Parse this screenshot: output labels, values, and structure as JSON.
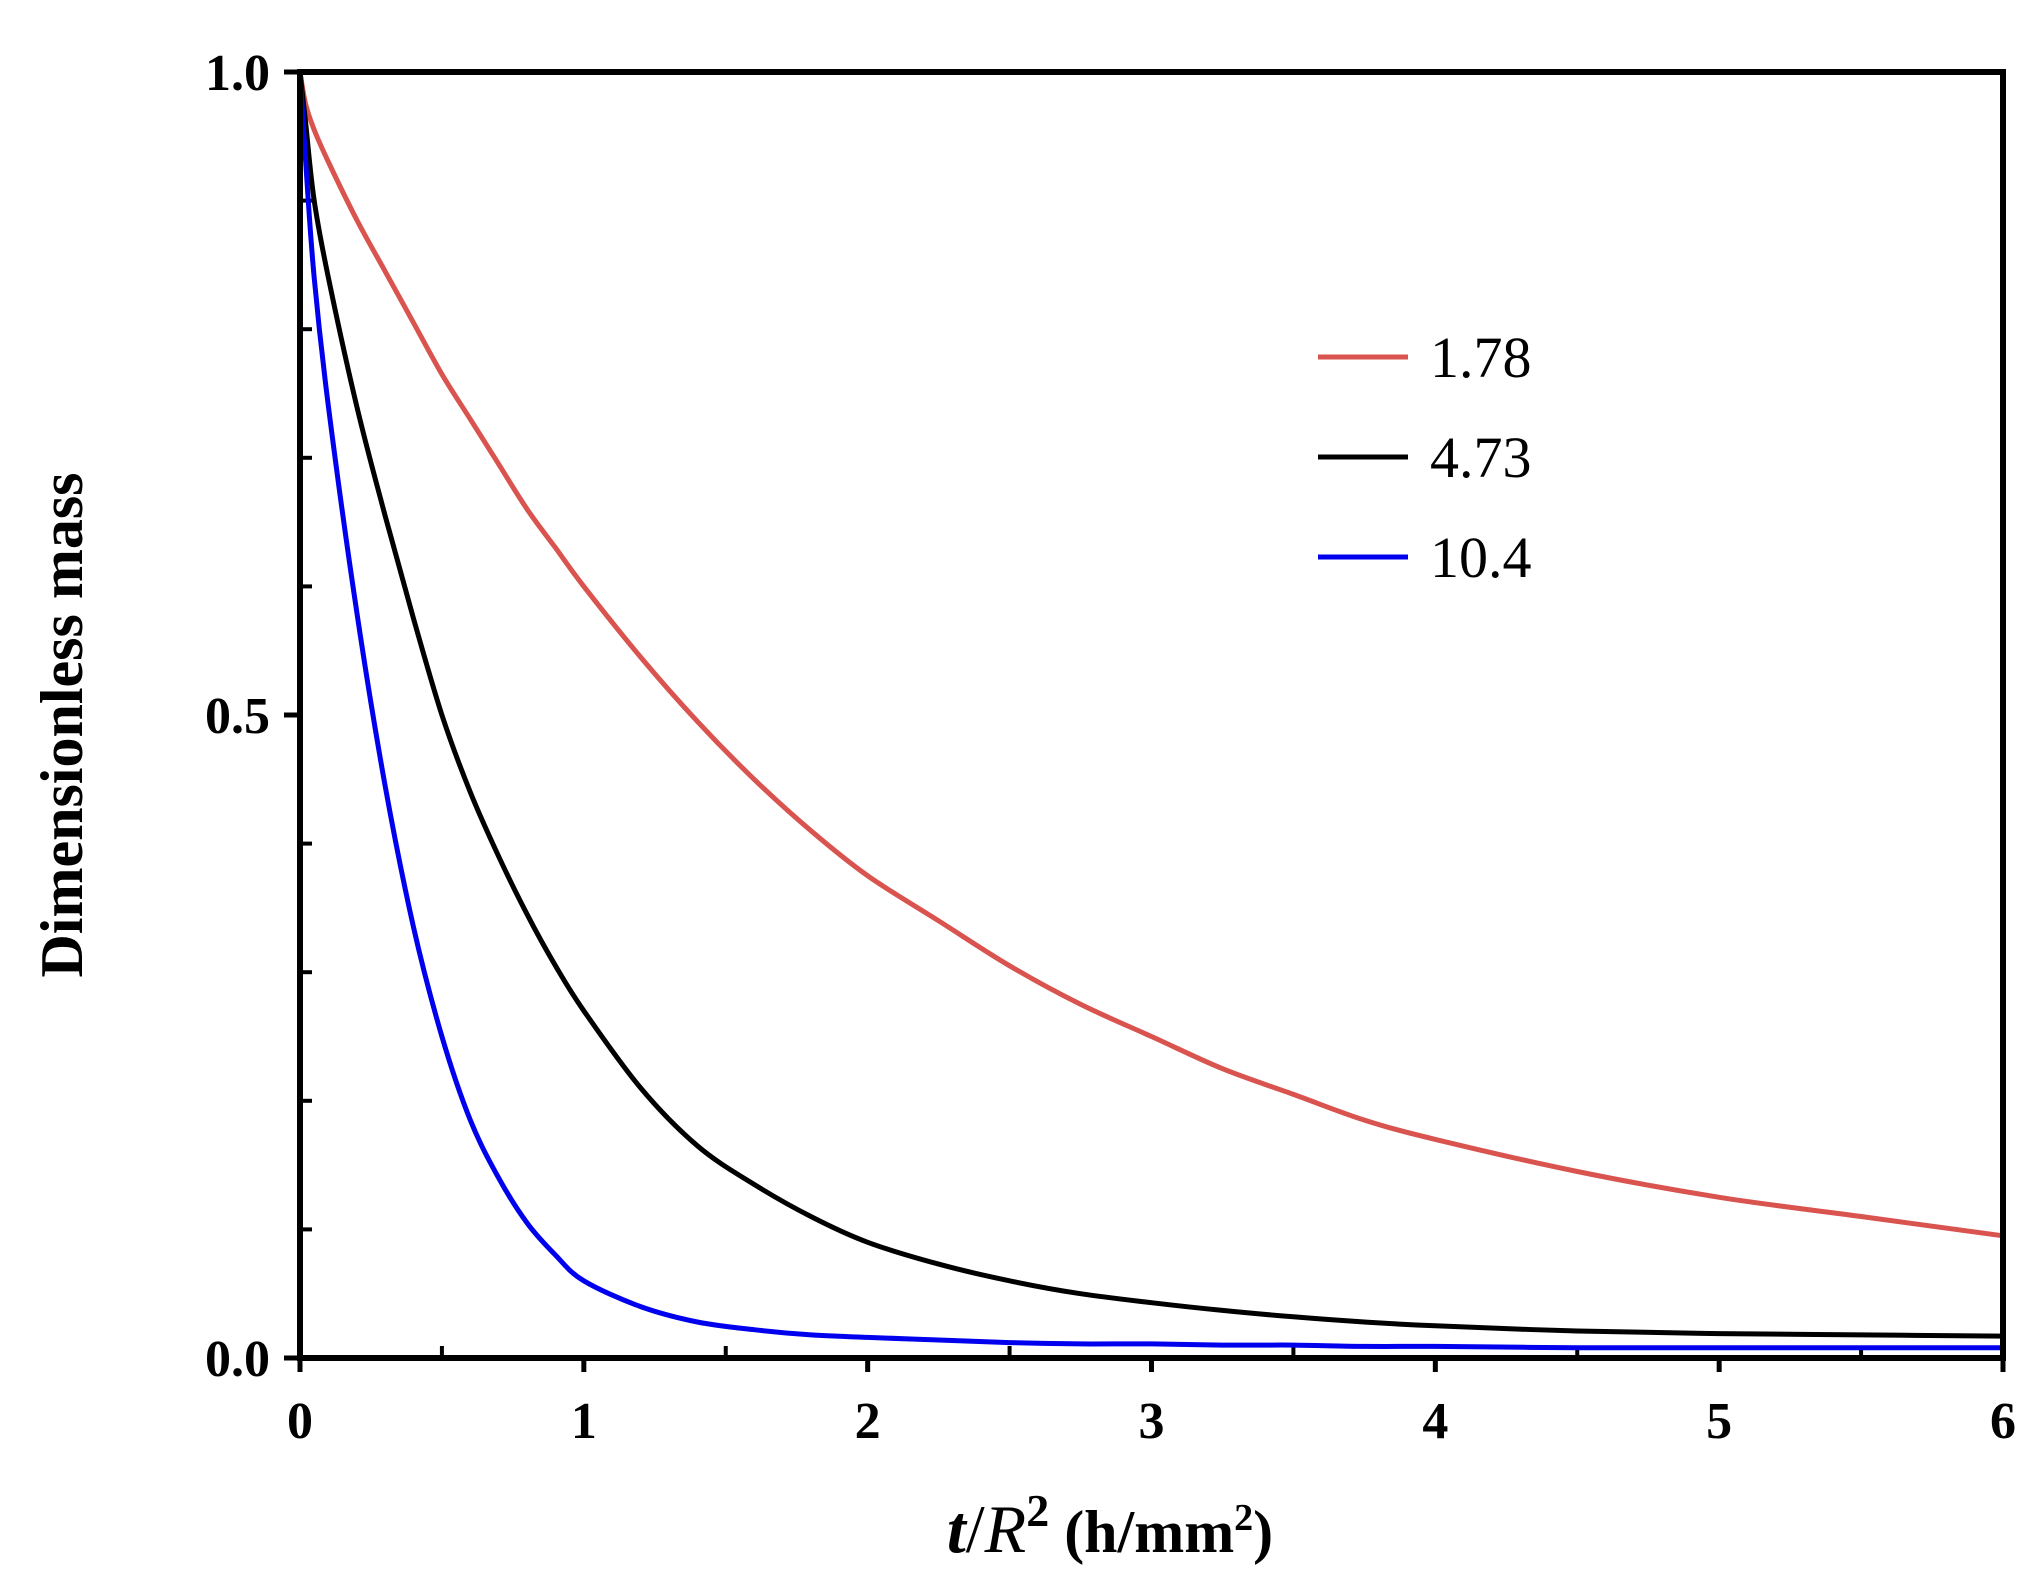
{
  "chart_data": {
    "type": "line",
    "title": "",
    "xlabel": {
      "var_t": "t",
      "slash": "/",
      "var_R": "R",
      "sup": "2",
      "unit_open": " (h/mm",
      "unit_sup": "2",
      "unit_close": ")"
    },
    "ylabel": "Dimensionless mass",
    "xlim": [
      0,
      6
    ],
    "ylim": [
      0,
      1
    ],
    "x_ticks": [
      "0",
      "1",
      "2",
      "3",
      "4",
      "5",
      "6"
    ],
    "y_ticks": [
      "0.0",
      "0.5",
      "1.0"
    ],
    "x_tick_values": [
      0,
      1,
      2,
      3,
      4,
      5,
      6
    ],
    "y_tick_values": [
      0,
      0.5,
      1
    ],
    "x_minor_step": 0.5,
    "y_minor_step": 0.1,
    "grid": false,
    "legend_position": "top-right",
    "x": [
      0,
      0.02,
      0.05,
      0.1,
      0.2,
      0.3,
      0.4,
      0.5,
      0.6,
      0.7,
      0.8,
      0.9,
      1.0,
      1.2,
      1.4,
      1.6,
      1.8,
      2.0,
      2.25,
      2.5,
      2.75,
      3.0,
      3.25,
      3.5,
      3.75,
      4.0,
      4.5,
      5.0,
      5.5,
      6.0
    ],
    "series": [
      {
        "name": "1.78",
        "color": "#d9534f",
        "values": [
          1.0,
          0.975,
          0.955,
          0.93,
          0.885,
          0.845,
          0.805,
          0.765,
          0.73,
          0.695,
          0.66,
          0.63,
          0.6,
          0.545,
          0.495,
          0.45,
          0.41,
          0.375,
          0.34,
          0.305,
          0.275,
          0.25,
          0.225,
          0.205,
          0.185,
          0.17,
          0.145,
          0.125,
          0.11,
          0.095
        ]
      },
      {
        "name": "4.73",
        "color": "#000000",
        "values": [
          1.0,
          0.96,
          0.9,
          0.84,
          0.74,
          0.655,
          0.575,
          0.5,
          0.44,
          0.39,
          0.345,
          0.305,
          0.27,
          0.21,
          0.165,
          0.135,
          0.11,
          0.09,
          0.073,
          0.06,
          0.05,
          0.043,
          0.037,
          0.032,
          0.028,
          0.025,
          0.021,
          0.019,
          0.018,
          0.017
        ]
      },
      {
        "name": "10.4",
        "color": "#0000ee",
        "values": [
          1.0,
          0.93,
          0.84,
          0.74,
          0.58,
          0.445,
          0.335,
          0.25,
          0.185,
          0.14,
          0.105,
          0.08,
          0.06,
          0.04,
          0.028,
          0.022,
          0.018,
          0.016,
          0.014,
          0.012,
          0.011,
          0.011,
          0.01,
          0.01,
          0.009,
          0.009,
          0.008,
          0.008,
          0.008,
          0.008
        ]
      }
    ]
  }
}
